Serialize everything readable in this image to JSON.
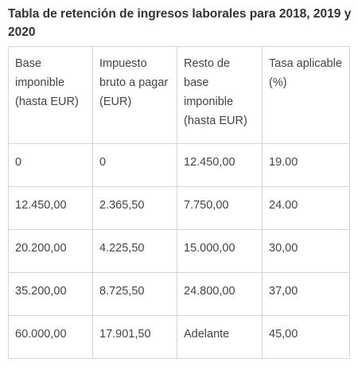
{
  "title": "Tabla de retención de ingresos laborales para 2018, 2019 y 2020",
  "table": {
    "headers": [
      "Base imponible (hasta EUR)",
      "Impuesto bruto a pagar (EUR)",
      "Resto de base imponible (hasta EUR)",
      "Tasa aplicable (%)"
    ],
    "rows": [
      [
        "0",
        "0",
        "12.450,00",
        "19.00"
      ],
      [
        "12.450,00",
        "2.365,50",
        "7.750,00",
        "24.00"
      ],
      [
        "20.200,00",
        "4.225,50",
        "15.000,00",
        "30,00"
      ],
      [
        "35.200,00",
        "8.725,50",
        "24.800,00",
        "37,00"
      ],
      [
        "60.000,00",
        "17.901,50",
        "Adelante",
        "45,00"
      ]
    ]
  }
}
